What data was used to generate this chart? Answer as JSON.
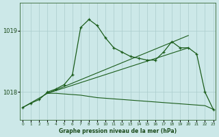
{
  "xlabel": "Graphe pression niveau de la mer (hPa)",
  "bg_color": "#cce8e8",
  "grid_color": "#aacccc",
  "line_color": "#1a5c1a",
  "ylim": [
    1017.55,
    1019.45
  ],
  "yticks": [
    1018,
    1019
  ],
  "xlim": [
    -0.3,
    23.3
  ],
  "xticks": [
    0,
    1,
    2,
    3,
    4,
    5,
    6,
    7,
    8,
    9,
    10,
    11,
    12,
    13,
    14,
    15,
    16,
    17,
    18,
    19,
    20,
    21,
    22,
    23
  ],
  "line_main": [
    1017.75,
    1017.82,
    1017.88,
    1018.0,
    1018.05,
    1018.12,
    1018.28,
    1019.05,
    1019.18,
    1019.08,
    1018.88,
    1018.72,
    1018.65,
    1018.58,
    1018.55,
    1018.52,
    1018.52,
    1018.65,
    1018.82,
    1018.72,
    1018.72,
    1018.62,
    1018.0,
    1017.72
  ],
  "line_diag1": [
    [
      3,
      1017.98
    ],
    [
      20,
      1018.72
    ]
  ],
  "line_diag2": [
    [
      3,
      1017.98
    ],
    [
      20,
      1018.92
    ]
  ],
  "line_flat": [
    [
      0,
      1017.75
    ],
    [
      3,
      1017.98
    ],
    [
      4,
      1017.98
    ],
    [
      5,
      1017.97
    ],
    [
      6,
      1017.96
    ],
    [
      7,
      1017.95
    ],
    [
      8,
      1017.93
    ],
    [
      9,
      1017.91
    ],
    [
      10,
      1017.9
    ],
    [
      11,
      1017.89
    ],
    [
      12,
      1017.88
    ],
    [
      13,
      1017.87
    ],
    [
      14,
      1017.86
    ],
    [
      15,
      1017.85
    ],
    [
      16,
      1017.84
    ],
    [
      17,
      1017.83
    ],
    [
      18,
      1017.82
    ],
    [
      19,
      1017.81
    ],
    [
      20,
      1017.8
    ],
    [
      21,
      1017.79
    ],
    [
      22,
      1017.78
    ],
    [
      23,
      1017.72
    ]
  ]
}
